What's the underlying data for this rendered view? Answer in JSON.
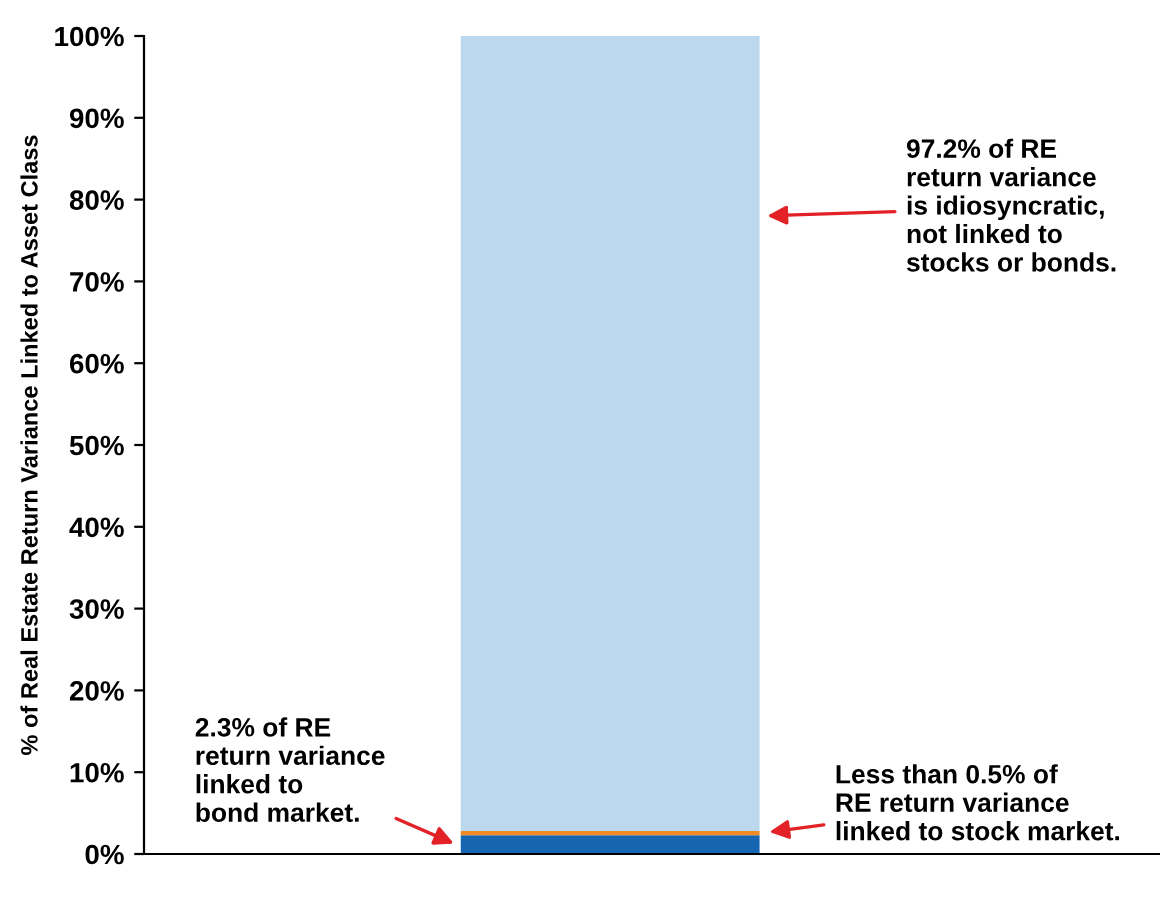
{
  "chart_data": {
    "type": "bar",
    "stacked": true,
    "ylabel": "% of Real Estate Return Variance Linked to Asset Class",
    "categories": [
      null
    ],
    "series": [
      {
        "color": "#1565b0",
        "values": [
          2.3
        ]
      },
      {
        "color": "#f08a24",
        "values": [
          0.5
        ]
      },
      {
        "color": "#bcd8ee",
        "values": [
          97.2
        ]
      }
    ],
    "ylim": [
      0,
      100
    ],
    "yticks": [
      {
        "value": 0,
        "label": "0%"
      },
      {
        "value": 10,
        "label": "10%"
      },
      {
        "value": 20,
        "label": "20%"
      },
      {
        "value": 30,
        "label": "30%"
      },
      {
        "value": 40,
        "label": "40%"
      },
      {
        "value": 50,
        "label": "50%"
      },
      {
        "value": 60,
        "label": "60%"
      },
      {
        "value": 70,
        "label": "70%"
      },
      {
        "value": 80,
        "label": "80%"
      },
      {
        "value": 90,
        "label": "90%"
      },
      {
        "value": 100,
        "label": "100%"
      }
    ],
    "grid": false,
    "annotations": [
      "97.2% of RE\nreturn variance\nis idiosyncratic,\nnot linked to\nstocks or bonds.",
      "2.3% of RE\nreturn variance\nlinked to\nbond market.",
      "Less than 0.5% of\nRE return variance\nlinked to stock market."
    ]
  }
}
